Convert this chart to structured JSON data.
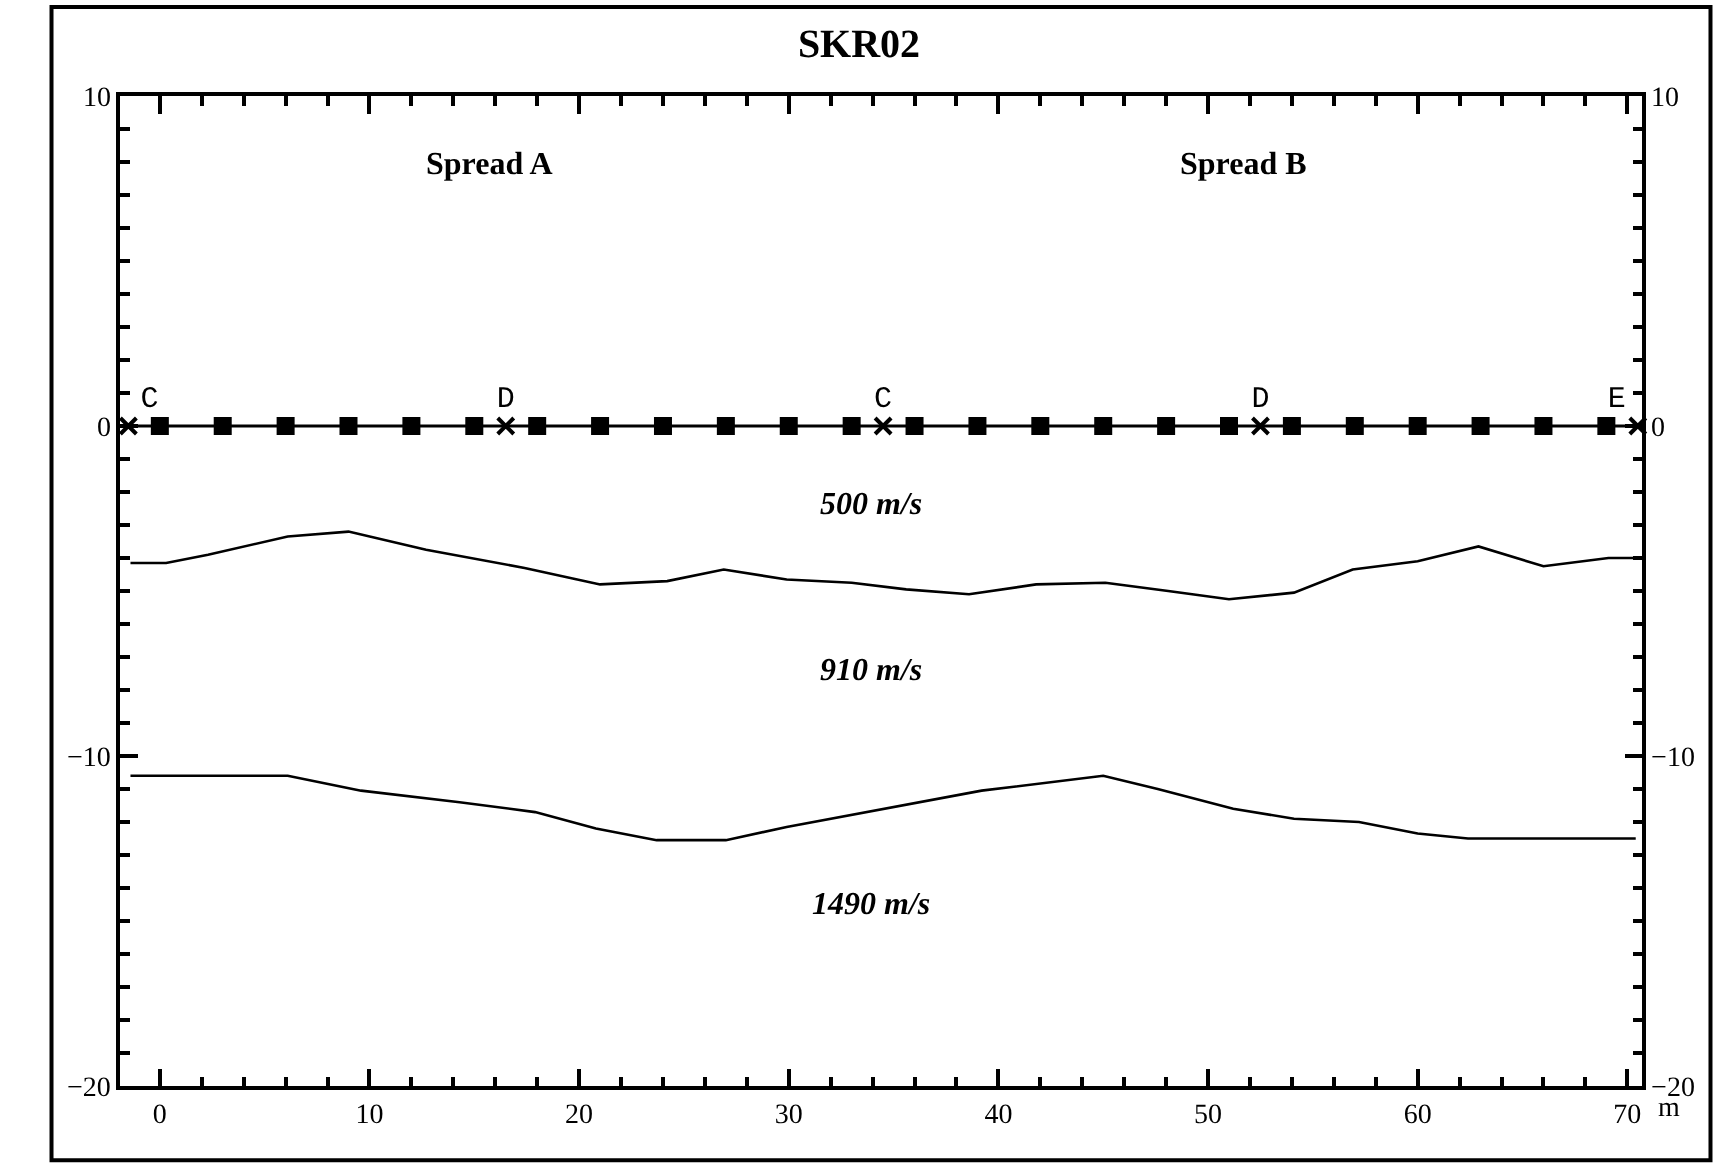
{
  "chart_data": {
    "type": "line",
    "title": "SKR02",
    "xlabel": "m",
    "xlim": [
      -1.9,
      70.7
    ],
    "xticks": [
      0,
      10,
      20,
      30,
      40,
      50,
      60,
      70
    ],
    "ylim": [
      -20,
      10
    ],
    "yticks": [
      {
        "value": -20,
        "label": "−20"
      },
      {
        "value": -10,
        "label": "−10"
      },
      0,
      10
    ],
    "y2lim": [
      -20,
      10
    ],
    "y2ticks": [
      {
        "value": -20,
        "label": "−20"
      },
      {
        "value": -10,
        "label": "−10"
      },
      0,
      10
    ],
    "grid": false,
    "series": [
      {
        "color": "#000000",
        "marker": "none",
        "x": [
          -1.4,
          0.3,
          2.3,
          6.1,
          9.0,
          12.7,
          17.4,
          21.0,
          24.2,
          26.9,
          29.9,
          33.0,
          35.6,
          38.6,
          41.8,
          45.1,
          48.1,
          51.0,
          54.1,
          56.9,
          60.0,
          62.9,
          66.0,
          69.1,
          70.4
        ],
        "values": [
          -4.15,
          -4.15,
          -3.9,
          -3.35,
          -3.2,
          -3.75,
          -4.3,
          -4.8,
          -4.7,
          -4.35,
          -4.65,
          -4.75,
          -4.95,
          -5.1,
          -4.8,
          -4.75,
          -5.0,
          -5.25,
          -5.05,
          -4.35,
          -4.1,
          -3.65,
          -4.25,
          -4.0,
          -4.0
        ]
      },
      {
        "color": "#000000",
        "marker": "none",
        "x": [
          -1.4,
          6.1,
          9.6,
          14.3,
          17.9,
          20.8,
          23.7,
          27.0,
          29.9,
          39.2,
          45.0,
          47.6,
          51.2,
          54.1,
          57.2,
          60.0,
          62.4,
          70.4
        ],
        "values": [
          -10.6,
          -10.6,
          -11.05,
          -11.4,
          -11.7,
          -12.2,
          -12.55,
          -12.55,
          -12.15,
          -11.05,
          -10.6,
          -11.0,
          -11.6,
          -11.9,
          -12.0,
          -12.35,
          -12.5,
          -12.5
        ]
      },
      {
        "type": "scatter",
        "color": "#000000",
        "marker": "square",
        "x": [
          0,
          3,
          6,
          9,
          12,
          15,
          18,
          21,
          24,
          27,
          30,
          33,
          36,
          39,
          42,
          45,
          48,
          51,
          54,
          57,
          60,
          63,
          66,
          69
        ],
        "values": [
          0,
          0,
          0,
          0,
          0,
          0,
          0,
          0,
          0,
          0,
          0,
          0,
          0,
          0,
          0,
          0,
          0,
          0,
          0,
          0,
          0,
          0,
          0,
          0
        ]
      },
      {
        "type": "scatter",
        "color": "#000000",
        "marker": "cross",
        "x": [
          -1.5,
          16.5,
          34.5,
          52.5,
          70.5
        ],
        "values": [
          0,
          0,
          0,
          0,
          0
        ],
        "value_labels": [
          "C",
          "D",
          "C",
          "D",
          "E"
        ]
      }
    ],
    "ref_lines": [
      {
        "axis": "y",
        "value": 0,
        "color": "#000000"
      }
    ],
    "annotations": [
      "Spread A",
      "Spread B",
      "500 m/s",
      "910 m/s",
      "1490 m/s"
    ]
  }
}
